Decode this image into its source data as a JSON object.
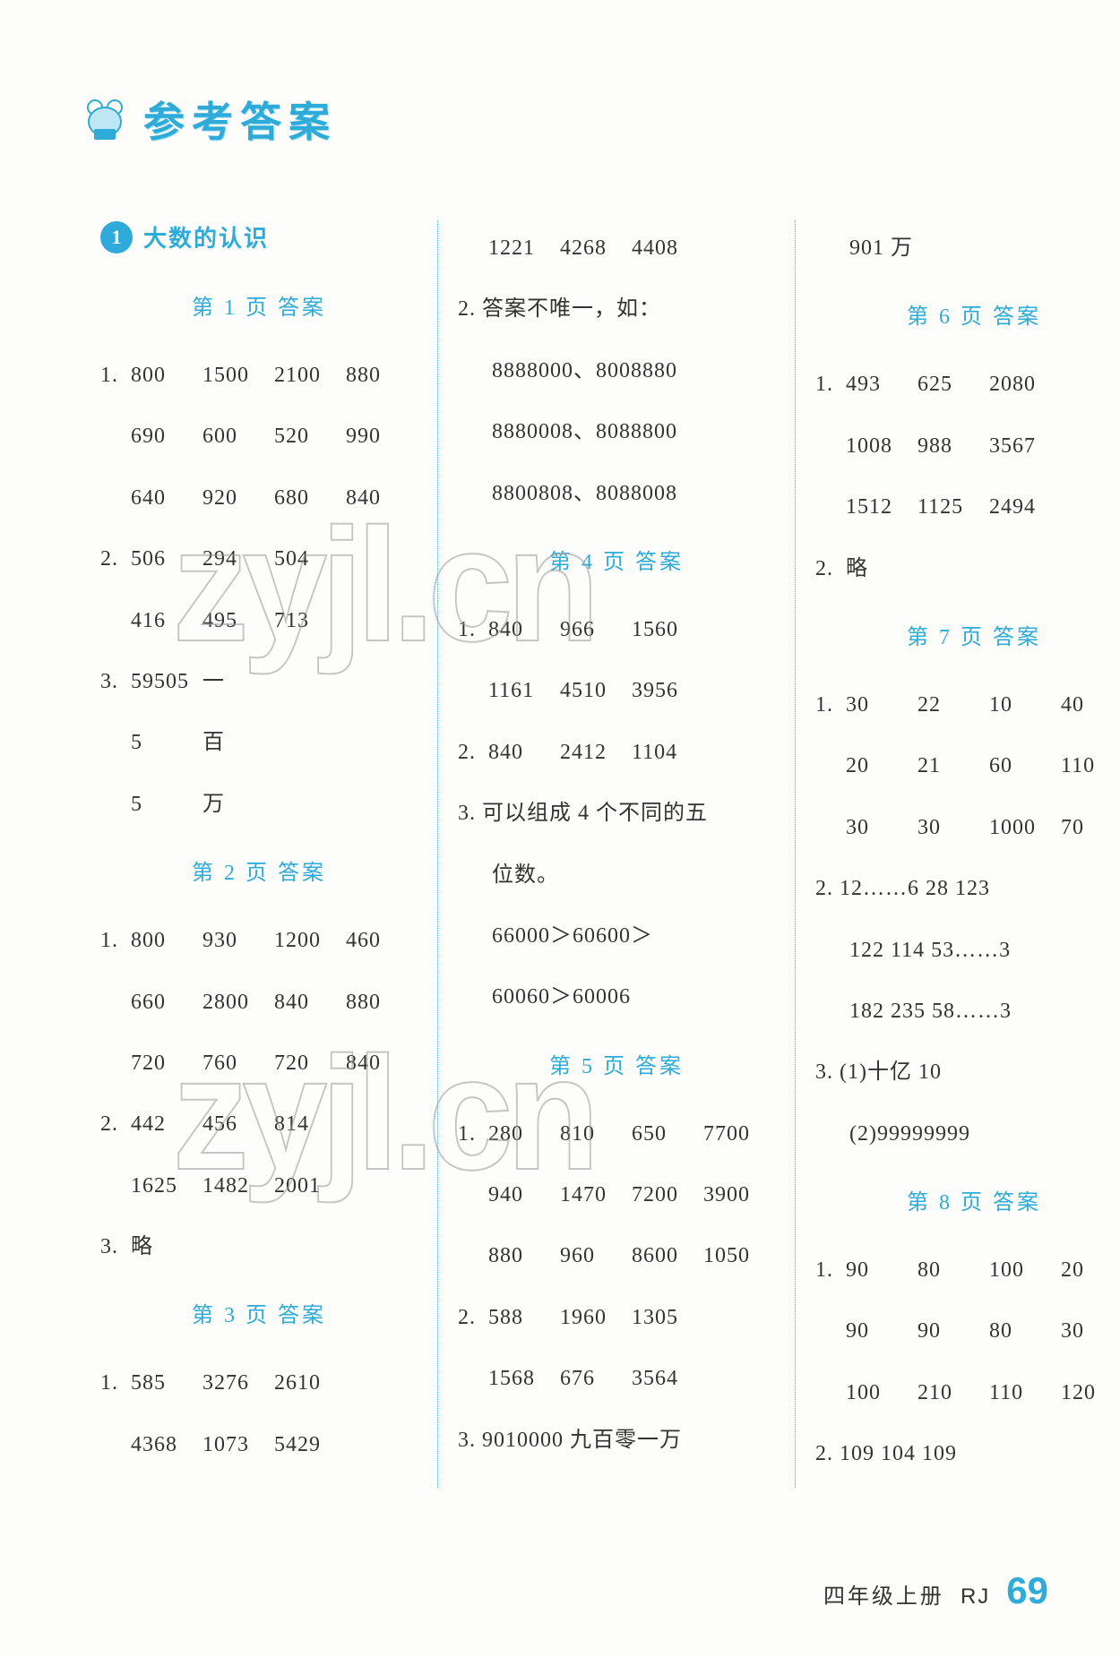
{
  "title": {
    "chars": [
      "参",
      "考",
      "答",
      "案"
    ]
  },
  "section": {
    "num": "1",
    "title_text": "大数的认识"
  },
  "col1": {
    "p1": {
      "label": "第 1 页   答案",
      "r1a": [
        "1.",
        "800",
        "1500",
        "2100",
        "880"
      ],
      "r1b": [
        "",
        "690",
        "600",
        "520",
        "990"
      ],
      "r1c": [
        "",
        "640",
        "920",
        "680",
        "840"
      ],
      "r2a": [
        "2.",
        "506",
        "294",
        "504",
        ""
      ],
      "r2b": [
        "",
        "416",
        "495",
        "713",
        ""
      ],
      "r3a": [
        "3.",
        "59505",
        "一",
        "",
        ""
      ],
      "r3b": [
        "",
        "5",
        "百",
        "",
        ""
      ],
      "r3c": [
        "",
        "5",
        "万",
        "",
        ""
      ]
    },
    "p2": {
      "label": "第 2 页   答案",
      "r1a": [
        "1.",
        "800",
        "930",
        "1200",
        "460"
      ],
      "r1b": [
        "",
        "660",
        "2800",
        "840",
        "880"
      ],
      "r1c": [
        "",
        "720",
        "760",
        "720",
        "840"
      ],
      "r2a": [
        "2.",
        "442",
        "456",
        "814",
        ""
      ],
      "r2b": [
        "",
        "1625",
        "1482",
        "2001",
        ""
      ],
      "r3": [
        "3.",
        "略",
        "",
        "",
        ""
      ]
    },
    "p3": {
      "label": "第 3 页   答案",
      "r1a": [
        "1.",
        "585",
        "3276",
        "2610",
        ""
      ],
      "r1b": [
        "",
        "4368",
        "1073",
        "5429",
        ""
      ]
    }
  },
  "col2": {
    "top_a": [
      "",
      "1221",
      "4268",
      "4408",
      ""
    ],
    "r2": "2. 答案不唯一，如：",
    "r2a": "8888000、8008880",
    "r2b": "8880008、8088800",
    "r2c": "8800808、8088008",
    "p4": {
      "label": "第 4 页   答案",
      "r1a": [
        "1.",
        "840",
        "966",
        "1560",
        ""
      ],
      "r1b": [
        "",
        "1161",
        "4510",
        "3956",
        ""
      ],
      "r2a": [
        "2.",
        "840",
        "2412",
        "1104",
        ""
      ],
      "r3": "3. 可以组成 4 个不同的五",
      "r3b": "   位数。",
      "r3c": "66000＞60600＞",
      "r3d": "60060＞60006"
    },
    "p5": {
      "label": "第 5 页   答案",
      "r1a": [
        "1.",
        "280",
        "810",
        "650",
        "7700"
      ],
      "r1b": [
        "",
        "940",
        "1470",
        "7200",
        "3900"
      ],
      "r1c": [
        "",
        "880",
        "960",
        "8600",
        "1050"
      ],
      "r2a": [
        "2.",
        "588",
        "1960",
        "1305",
        ""
      ],
      "r2b": [
        "",
        "1568",
        "676",
        "3564",
        ""
      ],
      "r3": "3. 9010000   九百零一万"
    }
  },
  "col3": {
    "top": "901 万",
    "p6": {
      "label": "第 6 页   答案",
      "r1a": [
        "1.",
        "493",
        "625",
        "2080",
        ""
      ],
      "r1b": [
        "",
        "1008",
        "988",
        "3567",
        ""
      ],
      "r1c": [
        "",
        "1512",
        "1125",
        "2494",
        ""
      ],
      "r2": [
        "2.",
        "略",
        "",
        "",
        ""
      ]
    },
    "p7": {
      "label": "第 7 页   答案",
      "r1a": [
        "1.",
        "30",
        "22",
        "10",
        "40"
      ],
      "r1b": [
        "",
        "20",
        "21",
        "60",
        "110"
      ],
      "r1c": [
        "",
        "30",
        "30",
        "1000",
        "70"
      ],
      "r2a": "2. 12……6   28   123",
      "r2b": "   122   114   53……3",
      "r2c": "   182   235   58……3",
      "r3a": "3. (1)十亿   10",
      "r3b": "   (2)99999999"
    },
    "p8": {
      "label": "第 8 页   答案",
      "r1a": [
        "1.",
        "90",
        "80",
        "100",
        "20"
      ],
      "r1b": [
        "",
        "90",
        "90",
        "80",
        "30"
      ],
      "r1c": [
        "",
        "100",
        "210",
        "110",
        "120"
      ],
      "r2": "2. 109   104   109"
    }
  },
  "footer": {
    "grade": "四年级上册",
    "ed": "RJ",
    "page": "69"
  },
  "watermark": "zyjl.cn",
  "colors": {
    "accent": "#2eabd8",
    "text": "#333",
    "bg": "#fdfdfb"
  }
}
